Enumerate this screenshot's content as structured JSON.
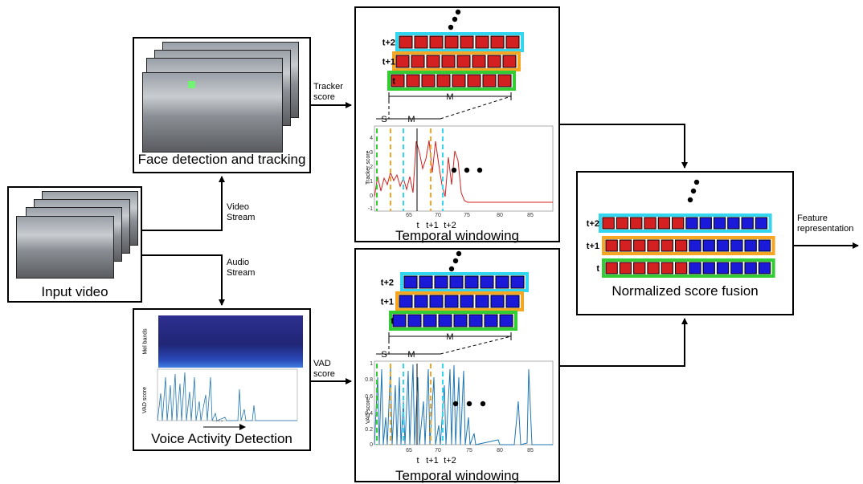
{
  "boxes": {
    "input_video": "Input video",
    "face_detection": "Face detection and tracking",
    "vad": "Voice Activity Detection",
    "temporal_top": "Temporal windowing",
    "temporal_bottom": "Temporal windowing",
    "fusion": "Normalized score fusion"
  },
  "arrows": {
    "video_stream": [
      "Video",
      "Stream"
    ],
    "audio_stream": [
      "Audio",
      "Stream"
    ],
    "tracker_score": [
      "Tracker",
      "score"
    ],
    "vad_score": [
      "VAD",
      "score"
    ],
    "feature_representation": [
      "Feature",
      "representation"
    ]
  },
  "rows": [
    "t+2",
    "t+1",
    "t"
  ],
  "window_labels": {
    "s": "S",
    "m": "M"
  },
  "time_ticks": [
    "t",
    "t+1",
    "t+2"
  ],
  "tracker_plot": {
    "ylabel": "Tracker score",
    "yticks": [
      "4",
      "3",
      "2",
      "1",
      "0",
      "-1"
    ],
    "xticks": [
      "65",
      "70",
      "75",
      "80",
      "85"
    ]
  },
  "vad_plot": {
    "ylabel": "VAD score",
    "yticks": [
      "1",
      "0.8",
      "0.6",
      "0.4",
      "0.2",
      "0"
    ],
    "xticks": [
      "65",
      "70",
      "75",
      "80",
      "85"
    ]
  },
  "vad_thumb": {
    "ylabel_top": "Mel bands",
    "ylabel_bottom": "VAD score",
    "xlabel": "Time"
  },
  "colors": {
    "red": "#d42020",
    "blue": "#1a1ad8",
    "green_border": "#33cc33",
    "orange_border": "#f5a623",
    "cyan_border": "#33d6f0",
    "series_red": "#d42020",
    "series_blue": "#1f77b4"
  }
}
